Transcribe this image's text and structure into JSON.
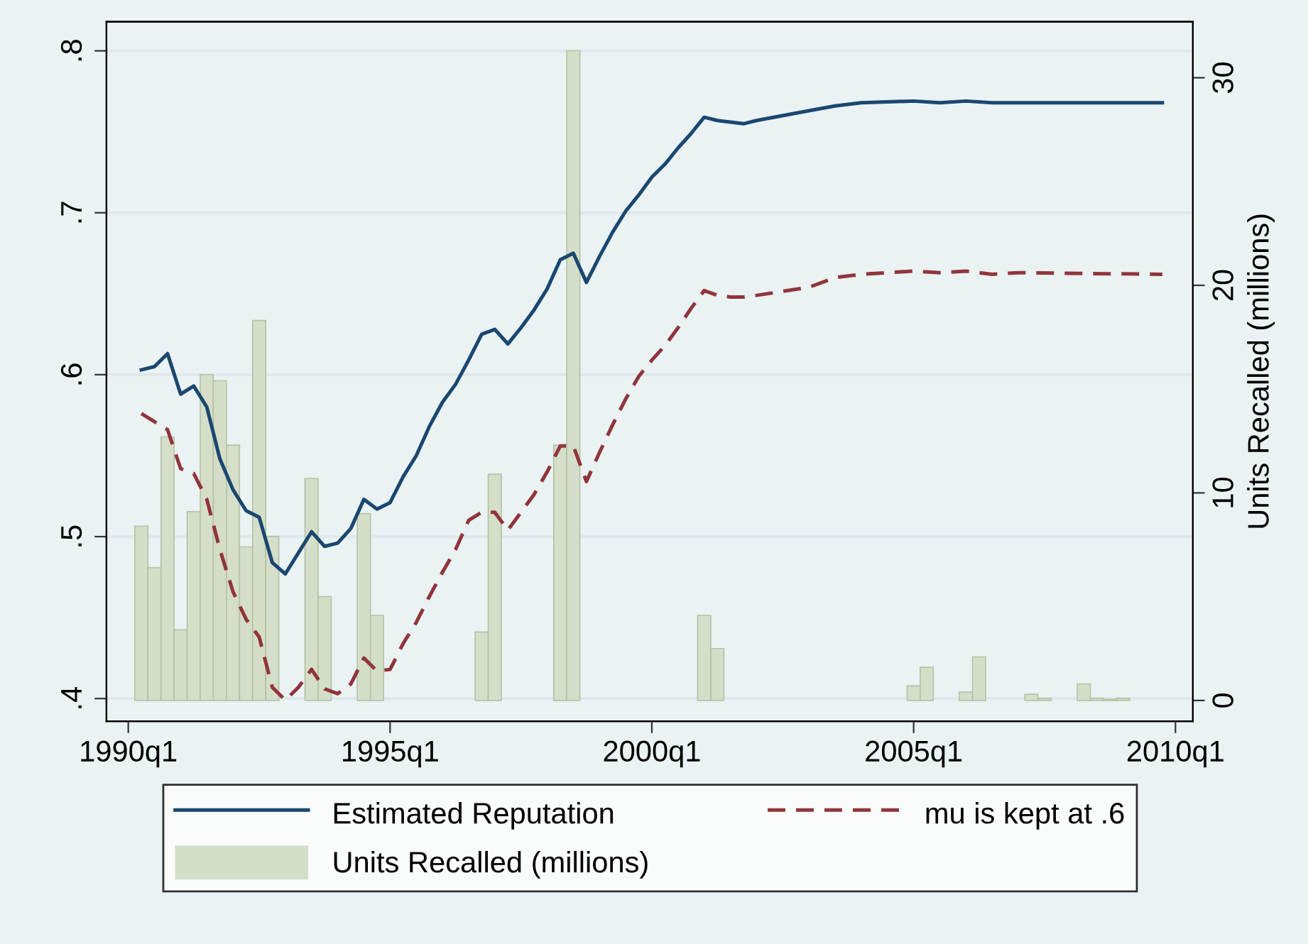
{
  "chart_data": {
    "type": "line",
    "xlim": [
      "1989-08",
      "2010-05"
    ],
    "xticks": [
      {
        "value": "1990-01",
        "label": "1990q1"
      },
      {
        "value": "1995-01",
        "label": "1995q1"
      },
      {
        "value": "2000-01",
        "label": "2000q1"
      },
      {
        "value": "2005-01",
        "label": "2005q1"
      },
      {
        "value": "2010-01",
        "label": "2010q1"
      }
    ],
    "ylim": [
      0.386,
      0.818
    ],
    "yticks": [
      {
        "value": 0.4,
        "label": ".4"
      },
      {
        "value": 0.5,
        "label": ".5"
      },
      {
        "value": 0.6,
        "label": ".6"
      },
      {
        "value": 0.7,
        "label": ".7"
      },
      {
        "value": 0.8,
        "label": ".8"
      }
    ],
    "y2lim": [
      -1.0,
      32.7
    ],
    "y2ticks": [
      0,
      10,
      20,
      30
    ],
    "y2label": "Units Recalled (millions)",
    "grid": "y",
    "legend": "bottom",
    "series": [
      {
        "name": "Estimated Reputation",
        "color": "#1a476f",
        "line_style": "solid",
        "x": [
          "1990-04",
          "1990-07",
          "1990-10",
          "1991-01",
          "1991-04",
          "1991-07",
          "1991-10",
          "1992-01",
          "1992-04",
          "1992-07",
          "1992-10",
          "1993-01",
          "1993-04",
          "1993-07",
          "1993-10",
          "1994-01",
          "1994-04",
          "1994-07",
          "1994-10",
          "1995-01",
          "1995-04",
          "1995-07",
          "1995-10",
          "1996-01",
          "1996-04",
          "1996-07",
          "1996-10",
          "1997-01",
          "1997-04",
          "1997-07",
          "1997-10",
          "1998-01",
          "1998-04",
          "1998-07",
          "1998-10",
          "1999-01",
          "1999-04",
          "1999-07",
          "1999-10",
          "2000-01",
          "2000-04",
          "2000-07",
          "2000-10",
          "2001-01",
          "2001-04",
          "2001-07",
          "2001-10",
          "2002-01",
          "2003-01",
          "2003-07",
          "2004-01",
          "2005-01",
          "2005-07",
          "2006-01",
          "2006-07",
          "2007-01",
          "2008-01",
          "2008-07",
          "2009-10"
        ],
        "values": [
          0.603,
          0.605,
          0.613,
          0.588,
          0.593,
          0.58,
          0.548,
          0.529,
          0.516,
          0.512,
          0.484,
          0.477,
          0.49,
          0.503,
          0.494,
          0.496,
          0.505,
          0.523,
          0.517,
          0.521,
          0.537,
          0.55,
          0.568,
          0.583,
          0.594,
          0.609,
          0.625,
          0.628,
          0.619,
          0.629,
          0.64,
          0.653,
          0.671,
          0.675,
          0.657,
          0.673,
          0.688,
          0.701,
          0.711,
          0.722,
          0.73,
          0.74,
          0.749,
          0.759,
          0.757,
          0.756,
          0.755,
          0.757,
          0.763,
          0.766,
          0.768,
          0.769,
          0.768,
          0.769,
          0.768,
          0.768,
          0.768,
          0.768,
          0.768
        ]
      },
      {
        "name": "mu is kept at .6",
        "color": "#90353b",
        "line_style": "dashed",
        "x": [
          "1990-04",
          "1990-10",
          "1991-01",
          "1991-04",
          "1991-07",
          "1991-10",
          "1992-01",
          "1992-04",
          "1992-07",
          "1992-10",
          "1993-01",
          "1993-04",
          "1993-07",
          "1993-10",
          "1994-01",
          "1994-04",
          "1994-07",
          "1994-10",
          "1995-01",
          "1995-04",
          "1995-07",
          "1995-10",
          "1996-01",
          "1996-04",
          "1996-07",
          "1996-10",
          "1997-01",
          "1997-04",
          "1997-07",
          "1997-10",
          "1998-01",
          "1998-04",
          "1998-07",
          "1998-10",
          "1999-01",
          "1999-04",
          "1999-07",
          "1999-10",
          "2000-01",
          "2000-04",
          "2000-07",
          "2000-10",
          "2001-01",
          "2001-04",
          "2001-07",
          "2001-10",
          "2002-01",
          "2003-01",
          "2003-07",
          "2004-01",
          "2005-01",
          "2005-07",
          "2006-01",
          "2006-07",
          "2007-01",
          "2009-10"
        ],
        "values": [
          0.576,
          0.566,
          0.542,
          0.539,
          0.523,
          0.492,
          0.466,
          0.449,
          0.438,
          0.407,
          0.399,
          0.407,
          0.418,
          0.406,
          0.403,
          0.409,
          0.425,
          0.417,
          0.418,
          0.434,
          0.447,
          0.463,
          0.478,
          0.492,
          0.51,
          0.515,
          0.515,
          0.504,
          0.515,
          0.526,
          0.54,
          0.556,
          0.556,
          0.534,
          0.552,
          0.569,
          0.585,
          0.599,
          0.609,
          0.618,
          0.629,
          0.641,
          0.652,
          0.649,
          0.648,
          0.648,
          0.649,
          0.654,
          0.66,
          0.662,
          0.664,
          0.663,
          0.664,
          0.662,
          0.663,
          0.662
        ]
      },
      {
        "name": "Units Recalled (millions)",
        "type": "bar",
        "axis": "y2",
        "color": "#d5dec9",
        "x": [
          "1990-04",
          "1990-07",
          "1990-10",
          "1991-01",
          "1991-04",
          "1991-07",
          "1991-10",
          "1992-01",
          "1992-04",
          "1992-07",
          "1992-10",
          "1993-07",
          "1993-10",
          "1994-07",
          "1994-10",
          "1996-10",
          "1997-01",
          "1998-04",
          "1998-07",
          "2001-01",
          "2001-04",
          "2005-01",
          "2005-04",
          "2006-01",
          "2006-04",
          "2007-04",
          "2007-07",
          "2008-04",
          "2008-07",
          "2008-10",
          "2009-01"
        ],
        "values": [
          8.4,
          6.4,
          12.7,
          3.4,
          9.1,
          15.7,
          15.4,
          12.3,
          7.4,
          18.3,
          7.9,
          10.7,
          5.0,
          9.0,
          4.1,
          3.3,
          10.9,
          12.3,
          31.3,
          4.1,
          2.5,
          0.7,
          1.6,
          0.4,
          2.1,
          0.3,
          0.1,
          0.8,
          0.1,
          0.05,
          0.1
        ]
      }
    ]
  }
}
